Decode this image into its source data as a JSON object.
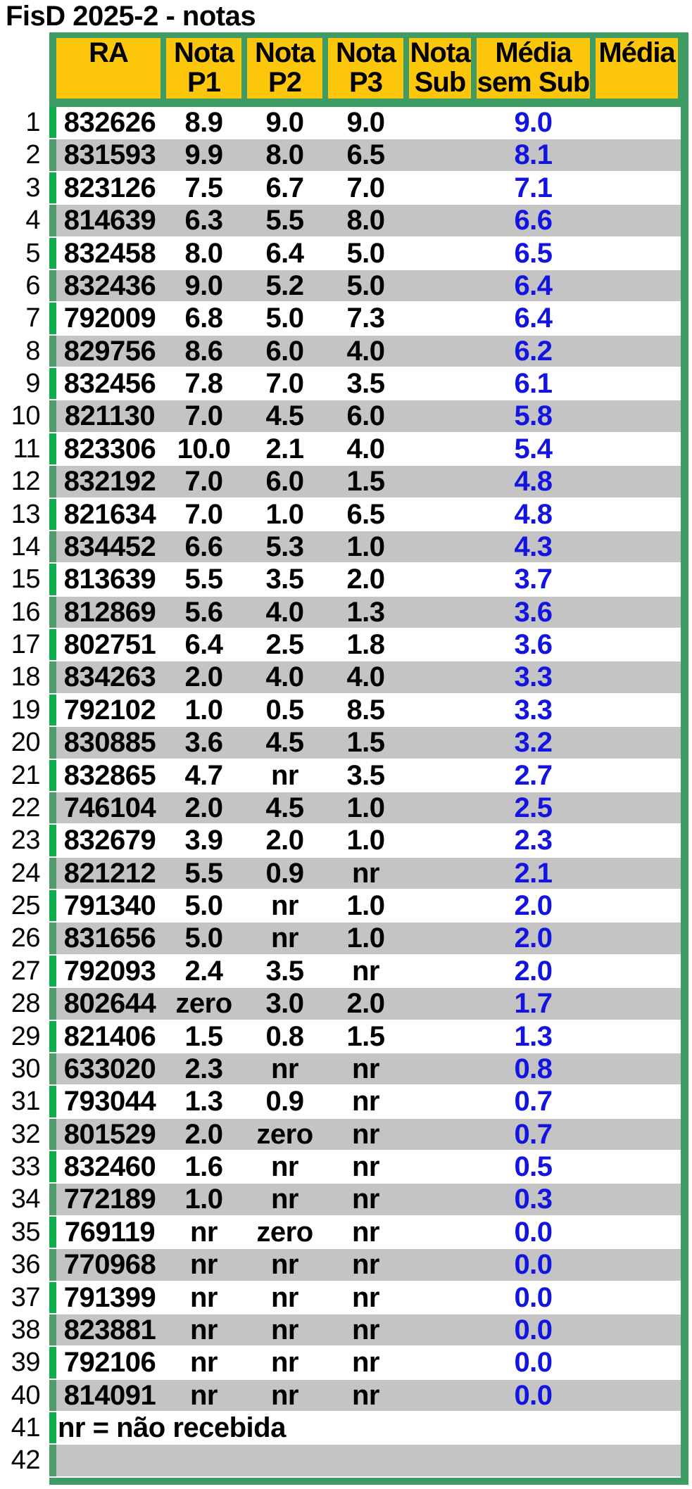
{
  "title": "FisD 2025-2 - notas",
  "colors": {
    "header_yellow": "#FCC60B",
    "table_border_green": "#3E9B63",
    "left_strip_bright_green": "#0FAD4D",
    "left_strip_muted_green": "#519B6D",
    "row_stripe_gray": "#C4C4C4",
    "media_value_blue": "#1414E0"
  },
  "table": {
    "headers": [
      {
        "key": "ra",
        "line1": "RA",
        "line2": ""
      },
      {
        "key": "p1",
        "line1": "Nota",
        "line2": "P1"
      },
      {
        "key": "p2",
        "line1": "Nota",
        "line2": "P2"
      },
      {
        "key": "p3",
        "line1": "Nota",
        "line2": "P3"
      },
      {
        "key": "sub",
        "line1": "Nota",
        "line2": "Sub"
      },
      {
        "key": "mss",
        "line1": "Média",
        "line2": "sem Sub"
      },
      {
        "key": "media",
        "line1": "Média",
        "line2": ""
      }
    ],
    "rows": [
      {
        "n": "1",
        "ra": "832626",
        "p1": "8.9",
        "p2": "9.0",
        "p3": "9.0",
        "sub": "",
        "mss": "9.0",
        "media": ""
      },
      {
        "n": "2",
        "ra": "831593",
        "p1": "9.9",
        "p2": "8.0",
        "p3": "6.5",
        "sub": "",
        "mss": "8.1",
        "media": ""
      },
      {
        "n": "3",
        "ra": "823126",
        "p1": "7.5",
        "p2": "6.7",
        "p3": "7.0",
        "sub": "",
        "mss": "7.1",
        "media": ""
      },
      {
        "n": "4",
        "ra": "814639",
        "p1": "6.3",
        "p2": "5.5",
        "p3": "8.0",
        "sub": "",
        "mss": "6.6",
        "media": ""
      },
      {
        "n": "5",
        "ra": "832458",
        "p1": "8.0",
        "p2": "6.4",
        "p3": "5.0",
        "sub": "",
        "mss": "6.5",
        "media": ""
      },
      {
        "n": "6",
        "ra": "832436",
        "p1": "9.0",
        "p2": "5.2",
        "p3": "5.0",
        "sub": "",
        "mss": "6.4",
        "media": ""
      },
      {
        "n": "7",
        "ra": "792009",
        "p1": "6.8",
        "p2": "5.0",
        "p3": "7.3",
        "sub": "",
        "mss": "6.4",
        "media": ""
      },
      {
        "n": "8",
        "ra": "829756",
        "p1": "8.6",
        "p2": "6.0",
        "p3": "4.0",
        "sub": "",
        "mss": "6.2",
        "media": ""
      },
      {
        "n": "9",
        "ra": "832456",
        "p1": "7.8",
        "p2": "7.0",
        "p3": "3.5",
        "sub": "",
        "mss": "6.1",
        "media": ""
      },
      {
        "n": "10",
        "ra": "821130",
        "p1": "7.0",
        "p2": "4.5",
        "p3": "6.0",
        "sub": "",
        "mss": "5.8",
        "media": ""
      },
      {
        "n": "11",
        "ra": "823306",
        "p1": "10.0",
        "p2": "2.1",
        "p3": "4.0",
        "sub": "",
        "mss": "5.4",
        "media": ""
      },
      {
        "n": "12",
        "ra": "832192",
        "p1": "7.0",
        "p2": "6.0",
        "p3": "1.5",
        "sub": "",
        "mss": "4.8",
        "media": ""
      },
      {
        "n": "13",
        "ra": "821634",
        "p1": "7.0",
        "p2": "1.0",
        "p3": "6.5",
        "sub": "",
        "mss": "4.8",
        "media": ""
      },
      {
        "n": "14",
        "ra": "834452",
        "p1": "6.6",
        "p2": "5.3",
        "p3": "1.0",
        "sub": "",
        "mss": "4.3",
        "media": ""
      },
      {
        "n": "15",
        "ra": "813639",
        "p1": "5.5",
        "p2": "3.5",
        "p3": "2.0",
        "sub": "",
        "mss": "3.7",
        "media": ""
      },
      {
        "n": "16",
        "ra": "812869",
        "p1": "5.6",
        "p2": "4.0",
        "p3": "1.3",
        "sub": "",
        "mss": "3.6",
        "media": ""
      },
      {
        "n": "17",
        "ra": "802751",
        "p1": "6.4",
        "p2": "2.5",
        "p3": "1.8",
        "sub": "",
        "mss": "3.6",
        "media": ""
      },
      {
        "n": "18",
        "ra": "834263",
        "p1": "2.0",
        "p2": "4.0",
        "p3": "4.0",
        "sub": "",
        "mss": "3.3",
        "media": ""
      },
      {
        "n": "19",
        "ra": "792102",
        "p1": "1.0",
        "p2": "0.5",
        "p3": "8.5",
        "sub": "",
        "mss": "3.3",
        "media": ""
      },
      {
        "n": "20",
        "ra": "830885",
        "p1": "3.6",
        "p2": "4.5",
        "p3": "1.5",
        "sub": "",
        "mss": "3.2",
        "media": ""
      },
      {
        "n": "21",
        "ra": "832865",
        "p1": "4.7",
        "p2": "nr",
        "p3": "3.5",
        "sub": "",
        "mss": "2.7",
        "media": ""
      },
      {
        "n": "22",
        "ra": "746104",
        "p1": "2.0",
        "p2": "4.5",
        "p3": "1.0",
        "sub": "",
        "mss": "2.5",
        "media": ""
      },
      {
        "n": "23",
        "ra": "832679",
        "p1": "3.9",
        "p2": "2.0",
        "p3": "1.0",
        "sub": "",
        "mss": "2.3",
        "media": ""
      },
      {
        "n": "24",
        "ra": "821212",
        "p1": "5.5",
        "p2": "0.9",
        "p3": "nr",
        "sub": "",
        "mss": "2.1",
        "media": ""
      },
      {
        "n": "25",
        "ra": "791340",
        "p1": "5.0",
        "p2": "nr",
        "p3": "1.0",
        "sub": "",
        "mss": "2.0",
        "media": ""
      },
      {
        "n": "26",
        "ra": "831656",
        "p1": "5.0",
        "p2": "nr",
        "p3": "1.0",
        "sub": "",
        "mss": "2.0",
        "media": ""
      },
      {
        "n": "27",
        "ra": "792093",
        "p1": "2.4",
        "p2": "3.5",
        "p3": "nr",
        "sub": "",
        "mss": "2.0",
        "media": ""
      },
      {
        "n": "28",
        "ra": "802644",
        "p1": "zero",
        "p2": "3.0",
        "p3": "2.0",
        "sub": "",
        "mss": "1.7",
        "media": ""
      },
      {
        "n": "29",
        "ra": "821406",
        "p1": "1.5",
        "p2": "0.8",
        "p3": "1.5",
        "sub": "",
        "mss": "1.3",
        "media": ""
      },
      {
        "n": "30",
        "ra": "633020",
        "p1": "2.3",
        "p2": "nr",
        "p3": "nr",
        "sub": "",
        "mss": "0.8",
        "media": ""
      },
      {
        "n": "31",
        "ra": "793044",
        "p1": "1.3",
        "p2": "0.9",
        "p3": "nr",
        "sub": "",
        "mss": "0.7",
        "media": ""
      },
      {
        "n": "32",
        "ra": "801529",
        "p1": "2.0",
        "p2": "zero",
        "p3": "nr",
        "sub": "",
        "mss": "0.7",
        "media": ""
      },
      {
        "n": "33",
        "ra": "832460",
        "p1": "1.6",
        "p2": "nr",
        "p3": "nr",
        "sub": "",
        "mss": "0.5",
        "media": ""
      },
      {
        "n": "34",
        "ra": "772189",
        "p1": "1.0",
        "p2": "nr",
        "p3": "nr",
        "sub": "",
        "mss": "0.3",
        "media": ""
      },
      {
        "n": "35",
        "ra": "769119",
        "p1": "nr",
        "p2": "zero",
        "p3": "nr",
        "sub": "",
        "mss": "0.0",
        "media": ""
      },
      {
        "n": "36",
        "ra": "770968",
        "p1": "nr",
        "p2": "nr",
        "p3": "nr",
        "sub": "",
        "mss": "0.0",
        "media": ""
      },
      {
        "n": "37",
        "ra": "791399",
        "p1": "nr",
        "p2": "nr",
        "p3": "nr",
        "sub": "",
        "mss": "0.0",
        "media": ""
      },
      {
        "n": "38",
        "ra": "823881",
        "p1": "nr",
        "p2": "nr",
        "p3": "nr",
        "sub": "",
        "mss": "0.0",
        "media": ""
      },
      {
        "n": "39",
        "ra": "792106",
        "p1": "nr",
        "p2": "nr",
        "p3": "nr",
        "sub": "",
        "mss": "0.0",
        "media": ""
      },
      {
        "n": "40",
        "ra": "814091",
        "p1": "nr",
        "p2": "nr",
        "p3": "nr",
        "sub": "",
        "mss": "0.0",
        "media": ""
      },
      {
        "n": "41",
        "type": "note",
        "text": "nr = não recebida"
      },
      {
        "n": "42",
        "type": "empty"
      }
    ]
  }
}
